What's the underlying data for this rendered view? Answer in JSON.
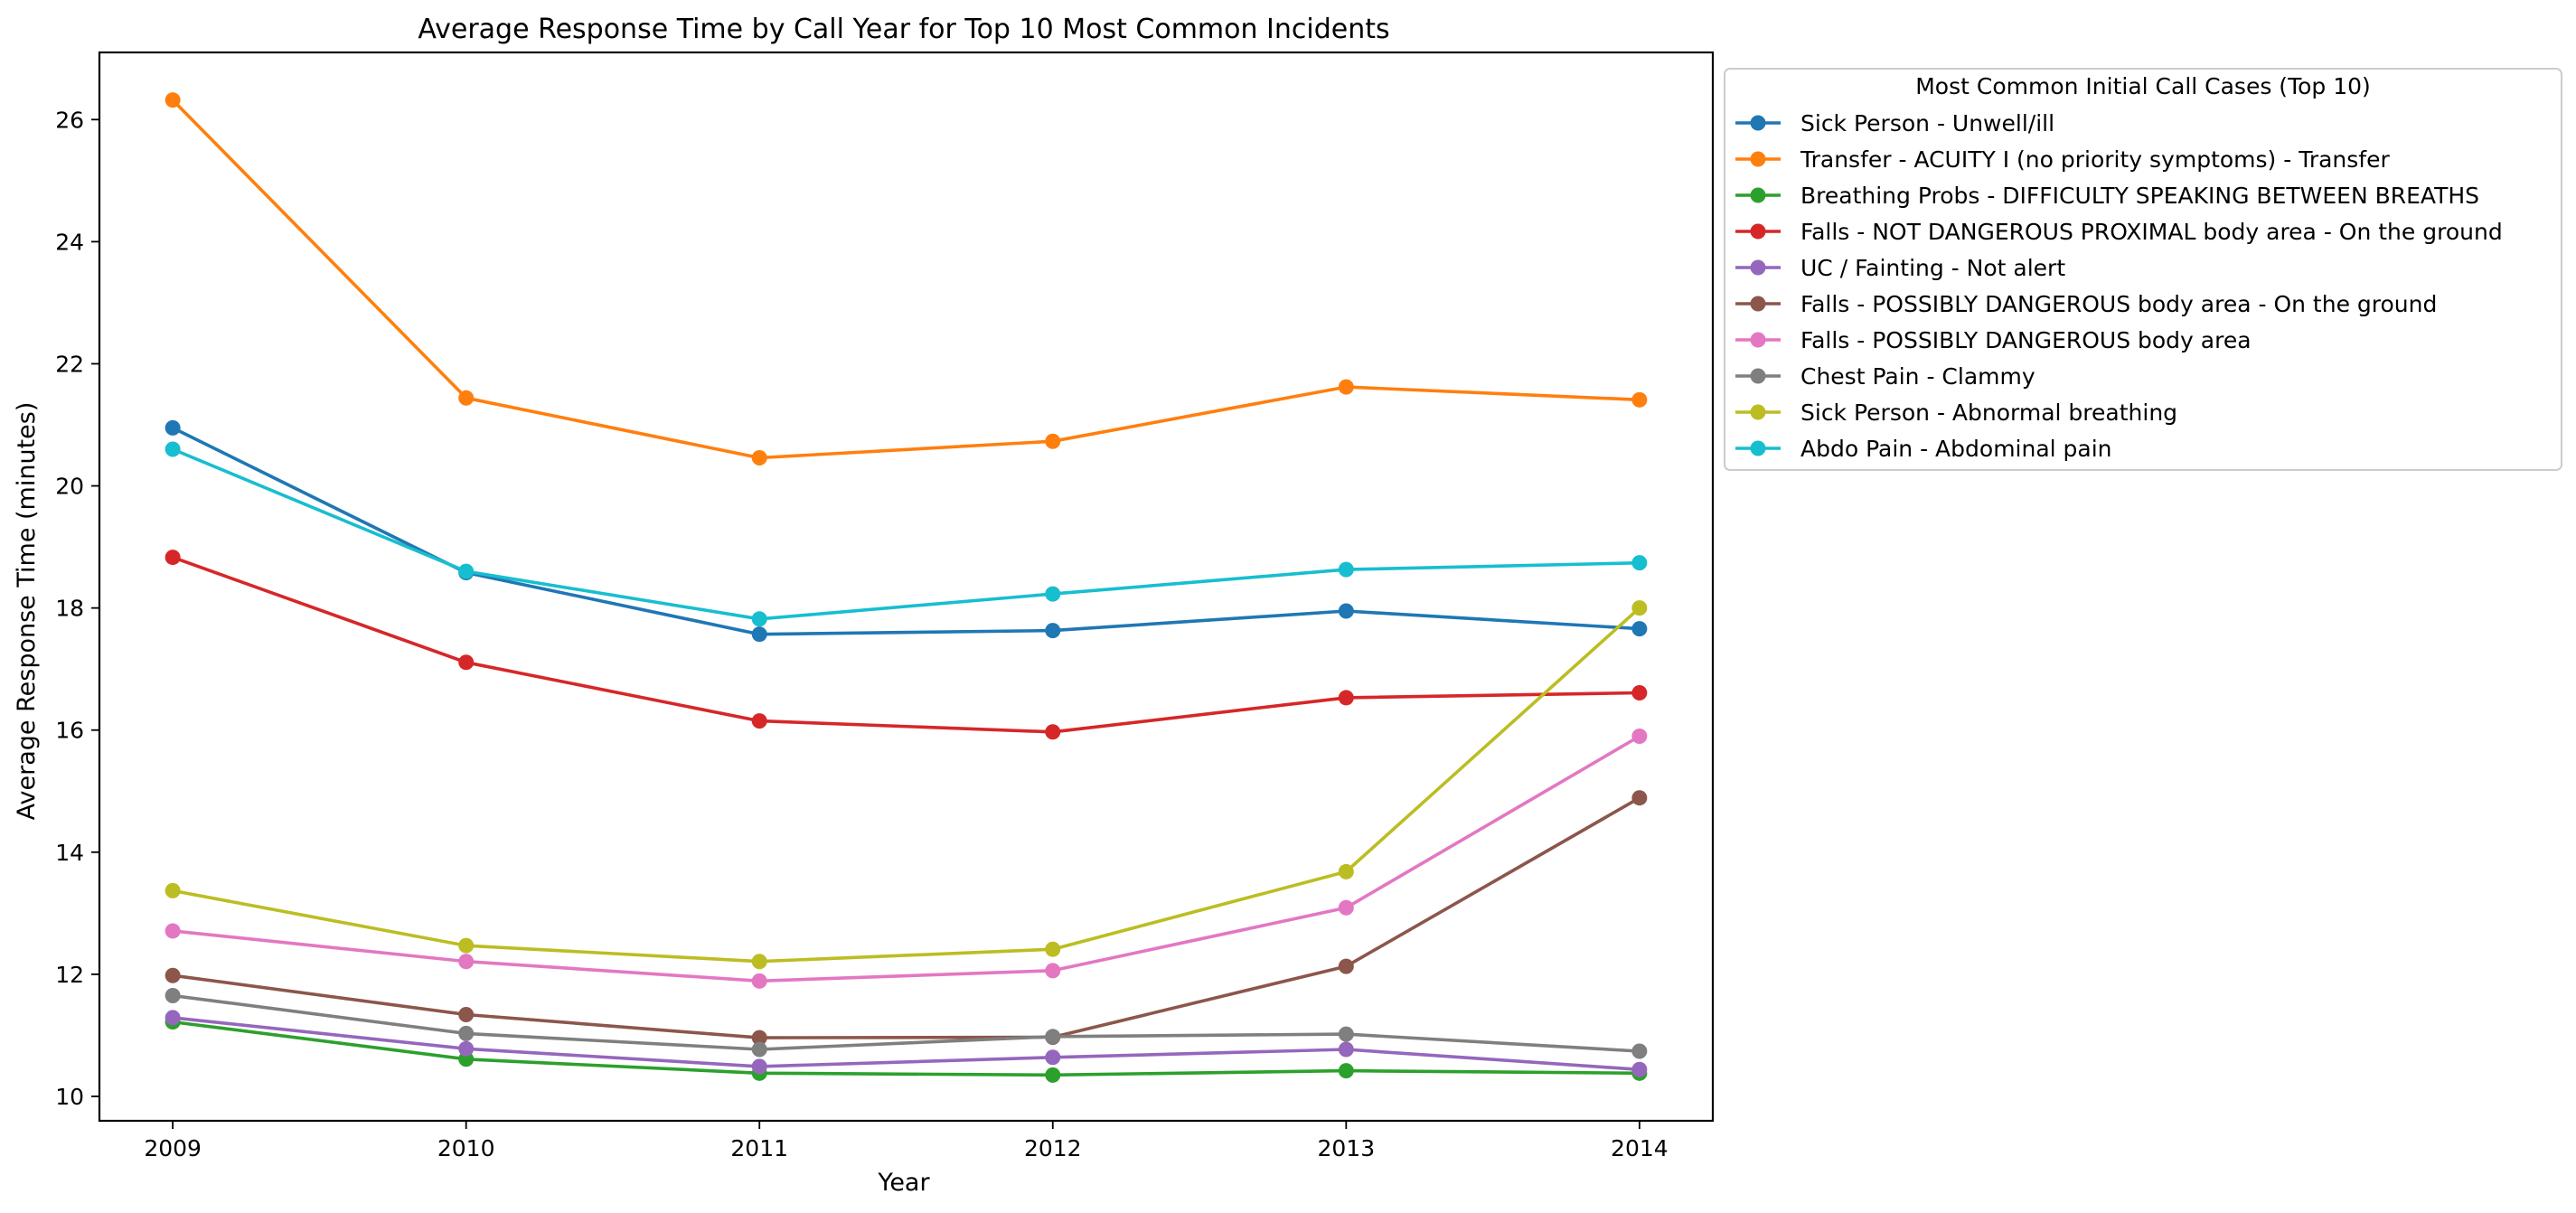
{
  "chart_data": {
    "type": "line",
    "title": "Average Response Time by Call Year for Top 10 Most Common Incidents",
    "xlabel": "Year",
    "ylabel": "Average Response Time (minutes)",
    "x": [
      2009,
      2010,
      2011,
      2012,
      2013,
      2014
    ],
    "x_tick_labels": [
      "2009",
      "2010",
      "2011",
      "2012",
      "2013",
      "2014"
    ],
    "y_ticks": [
      10,
      12,
      14,
      16,
      18,
      20,
      22,
      24,
      26
    ],
    "y_tick_labels": [
      "10",
      "12",
      "14",
      "16",
      "18",
      "20",
      "22",
      "24",
      "26"
    ],
    "xlim": [
      2008.75,
      2014.25
    ],
    "ylim": [
      9.6,
      27.1
    ],
    "grid": false,
    "legend": {
      "title": "Most Common Initial Call Cases (Top 10)",
      "placement": "outside top-right"
    },
    "series": [
      {
        "name": "Sick Person - Unwell/ill",
        "color": "#1f77b4",
        "values": [
          20.95,
          18.58,
          17.57,
          17.63,
          17.95,
          17.66
        ]
      },
      {
        "name": "Transfer - ACUITY I (no priority symptoms) - Transfer",
        "color": "#ff7f0e",
        "values": [
          26.32,
          21.44,
          20.46,
          20.73,
          21.62,
          21.41
        ]
      },
      {
        "name": "Breathing Probs - DIFFICULTY SPEAKING BETWEEN BREATHS",
        "color": "#2ca02c",
        "values": [
          11.22,
          10.61,
          10.38,
          10.35,
          10.42,
          10.38
        ]
      },
      {
        "name": "Falls - NOT DANGEROUS PROXIMAL body area - On the ground",
        "color": "#d62728",
        "values": [
          18.83,
          17.11,
          16.15,
          15.97,
          16.53,
          16.61
        ]
      },
      {
        "name": "UC / Fainting - Not alert",
        "color": "#9467bd",
        "values": [
          11.29,
          10.78,
          10.49,
          10.64,
          10.77,
          10.44
        ]
      },
      {
        "name": "Falls - POSSIBLY DANGEROUS body area - On the ground",
        "color": "#8c564b",
        "values": [
          11.98,
          11.34,
          10.96,
          10.97,
          12.13,
          14.89
        ]
      },
      {
        "name": "Falls - POSSIBLY DANGEROUS body area",
        "color": "#e377c2",
        "values": [
          12.71,
          12.21,
          11.89,
          12.06,
          13.09,
          15.9
        ]
      },
      {
        "name": "Chest Pain - Clammy",
        "color": "#7f7f7f",
        "values": [
          11.65,
          11.03,
          10.77,
          10.98,
          11.02,
          10.74
        ]
      },
      {
        "name": "Sick Person - Abnormal breathing",
        "color": "#bcbd22",
        "values": [
          13.37,
          12.47,
          12.21,
          12.41,
          13.68,
          18.0
        ]
      },
      {
        "name": "Abdo Pain - Abdominal pain",
        "color": "#17becf",
        "values": [
          20.6,
          18.6,
          17.82,
          18.23,
          18.63,
          18.74
        ]
      }
    ]
  }
}
